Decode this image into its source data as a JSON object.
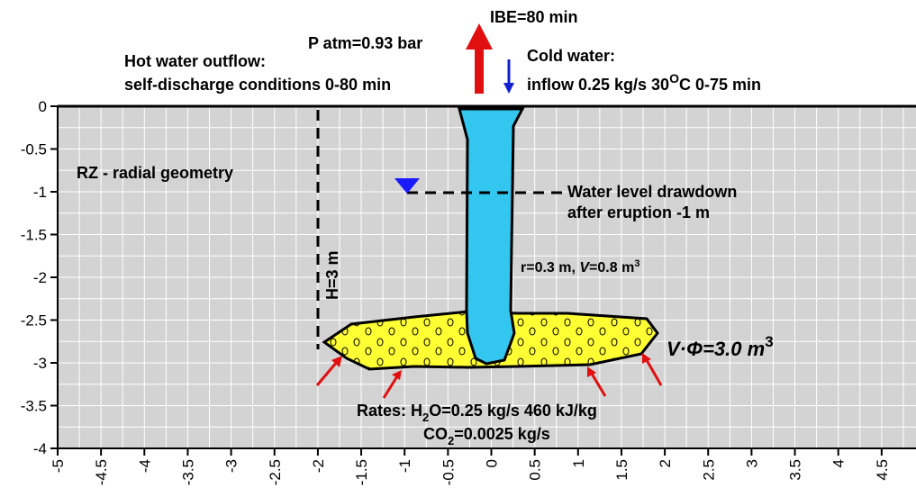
{
  "title_annotations": {
    "ibe": "IBE=80 min",
    "patm": "P atm=0.93 bar",
    "hot_water_line1": "Hot water outflow:",
    "hot_water_line2": "self-discharge conditions 0-80 min",
    "cold_water_line1": "Cold water:",
    "cold_water_line2_a": "inflow 0.25 kg/s 30",
    "cold_water_line2_sup": "O",
    "cold_water_line2_b": "C 0-75 min"
  },
  "labels": {
    "rz": "RZ - radial geometry",
    "drawdown_line1": "Water level drawdown",
    "drawdown_line2": "after eruption -1 m",
    "radius_a": "r=0.3 m, ",
    "radius_v": "V",
    "radius_b": "=0.8 m",
    "radius_sup": "3",
    "height": "H=3 m",
    "volume_main": "V·Φ=3.0 m",
    "volume_sup": "3",
    "rates_a": "Rates: H",
    "rates_sub": "2",
    "rates_b": "O=0.25 kg/s 460 kJ/kg",
    "co2_a": "CO",
    "co2_sub": "2",
    "co2_b": "=0.0025 kg/s"
  },
  "colors": {
    "background": "#d3d3d3",
    "water": "#33c6ee",
    "reservoir": "#ffff33",
    "arrow_red": "#e01010",
    "arrow_blue": "#1020d0",
    "water_marker": "#1a1aff"
  },
  "axes": {
    "x_ticks": [
      "-5",
      "-4.5",
      "-4",
      "-3.5",
      "-3",
      "-2.5",
      "-2",
      "-1.5",
      "-1",
      "-0.5",
      "0",
      "0.5",
      "1",
      "1.5",
      "2",
      "2.5",
      "3",
      "3.5",
      "4",
      "4.5",
      "5"
    ],
    "y_ticks": [
      "0",
      "-0.5",
      "-1",
      "-1.5",
      "-2",
      "-2.5",
      "-3",
      "-3.5",
      "-4"
    ],
    "xlim": [
      -5,
      5
    ],
    "ylim": [
      -4,
      0
    ],
    "grid": true
  }
}
